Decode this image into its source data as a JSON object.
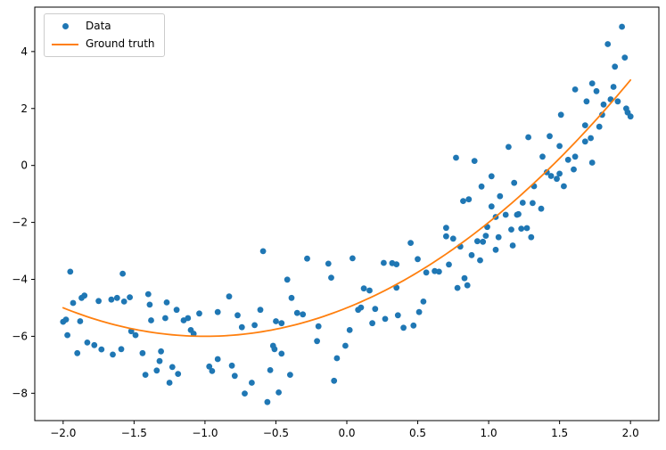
{
  "figure": {
    "background": "#ffffff",
    "frame_color": "#000000"
  },
  "legend": {
    "position": "upper left",
    "items": [
      {
        "label": "Data",
        "marker": "dot",
        "color": "#1f77b4"
      },
      {
        "label": "Ground truth",
        "marker": "line",
        "color": "#ff7f0e"
      }
    ]
  },
  "chart_data": {
    "type": "scatter",
    "title": "",
    "xlabel": "",
    "ylabel": "",
    "grid": false,
    "legend_position": "upper left",
    "xlim": [
      -2.2,
      2.2
    ],
    "ylim": [
      -8.96,
      5.56
    ],
    "x_ticks": [
      -2.0,
      -1.5,
      -1.0,
      -0.5,
      0.0,
      0.5,
      1.0,
      1.5,
      2.0
    ],
    "x_tick_labels": [
      "−2.0",
      "−1.5",
      "−1.0",
      "−0.5",
      "0.0",
      "0.5",
      "1.0",
      "1.5",
      "2.0"
    ],
    "y_ticks": [
      4,
      2,
      0,
      -2,
      -4,
      -6,
      -8
    ],
    "y_tick_labels": [
      "4",
      "2",
      "0",
      "−2",
      "−4",
      "−6",
      "−8"
    ],
    "series": [
      {
        "name": "Data",
        "type": "scatter",
        "color": "#1f77b4",
        "marker_radius": 3.4,
        "points": [
          [
            -2.0,
            -5.49
          ],
          [
            -1.98,
            -5.41
          ],
          [
            -1.97,
            -5.96
          ],
          [
            -1.95,
            -3.73
          ],
          [
            -1.93,
            -4.83
          ],
          [
            -1.9,
            -6.59
          ],
          [
            -1.88,
            -5.47
          ],
          [
            -1.87,
            -4.65
          ],
          [
            -1.85,
            -4.57
          ],
          [
            -1.83,
            -6.22
          ],
          [
            -1.78,
            -6.31
          ],
          [
            -1.75,
            -4.76
          ],
          [
            -1.73,
            -6.46
          ],
          [
            -1.66,
            -4.71
          ],
          [
            -1.65,
            -6.64
          ],
          [
            -1.62,
            -4.65
          ],
          [
            -1.59,
            -6.45
          ],
          [
            -1.58,
            -3.8
          ],
          [
            -1.57,
            -4.78
          ],
          [
            -1.53,
            -4.63
          ],
          [
            -1.52,
            -5.82
          ],
          [
            -1.49,
            -5.96
          ],
          [
            -1.44,
            -6.59
          ],
          [
            -1.42,
            -7.35
          ],
          [
            -1.4,
            -4.52
          ],
          [
            -1.39,
            -4.89
          ],
          [
            -1.38,
            -5.44
          ],
          [
            -1.34,
            -7.2
          ],
          [
            -1.32,
            -6.87
          ],
          [
            -1.31,
            -6.53
          ],
          [
            -1.28,
            -5.36
          ],
          [
            -1.27,
            -4.81
          ],
          [
            -1.25,
            -7.63
          ],
          [
            -1.23,
            -7.08
          ],
          [
            -1.2,
            -5.07
          ],
          [
            -1.19,
            -7.32
          ],
          [
            -1.15,
            -5.44
          ],
          [
            -1.12,
            -5.36
          ],
          [
            -1.1,
            -5.78
          ],
          [
            -1.08,
            -5.91
          ],
          [
            -1.04,
            -5.2
          ],
          [
            -0.97,
            -7.06
          ],
          [
            -0.95,
            -7.22
          ],
          [
            -0.91,
            -6.8
          ],
          [
            -0.91,
            -5.15
          ],
          [
            -0.83,
            -4.6
          ],
          [
            -0.81,
            -7.03
          ],
          [
            -0.79,
            -7.39
          ],
          [
            -0.77,
            -5.26
          ],
          [
            -0.74,
            -5.68
          ],
          [
            -0.72,
            -8.01
          ],
          [
            -0.67,
            -7.63
          ],
          [
            -0.65,
            -5.61
          ],
          [
            -0.61,
            -5.07
          ],
          [
            -0.59,
            -3.01
          ],
          [
            -0.56,
            -8.31
          ],
          [
            -0.54,
            -7.19
          ],
          [
            -0.52,
            -6.33
          ],
          [
            -0.51,
            -6.45
          ],
          [
            -0.5,
            -5.47
          ],
          [
            -0.48,
            -7.97
          ],
          [
            -0.46,
            -6.61
          ],
          [
            -0.46,
            -5.54
          ],
          [
            -0.42,
            -4.01
          ],
          [
            -0.4,
            -7.35
          ],
          [
            -0.39,
            -4.65
          ],
          [
            -0.35,
            -5.18
          ],
          [
            -0.31,
            -5.23
          ],
          [
            -0.28,
            -3.27
          ],
          [
            -0.21,
            -6.17
          ],
          [
            -0.2,
            -5.65
          ],
          [
            -0.13,
            -3.45
          ],
          [
            -0.11,
            -3.94
          ],
          [
            -0.09,
            -7.56
          ],
          [
            -0.07,
            -6.77
          ],
          [
            -0.01,
            -6.33
          ],
          [
            0.02,
            -5.78
          ],
          [
            0.04,
            -3.26
          ],
          [
            0.08,
            -5.07
          ],
          [
            0.1,
            -4.99
          ],
          [
            0.12,
            -4.32
          ],
          [
            0.16,
            -4.39
          ],
          [
            0.18,
            -5.54
          ],
          [
            0.2,
            -5.04
          ],
          [
            0.26,
            -3.42
          ],
          [
            0.27,
            -5.39
          ],
          [
            0.32,
            -3.43
          ],
          [
            0.35,
            -3.47
          ],
          [
            0.35,
            -4.29
          ],
          [
            0.36,
            -5.26
          ],
          [
            0.4,
            -5.7
          ],
          [
            0.45,
            -2.72
          ],
          [
            0.47,
            -5.62
          ],
          [
            0.5,
            -3.29
          ],
          [
            0.51,
            -5.15
          ],
          [
            0.54,
            -4.78
          ],
          [
            0.56,
            -3.76
          ],
          [
            0.62,
            -3.71
          ],
          [
            0.65,
            -3.73
          ],
          [
            0.7,
            -2.19
          ],
          [
            0.7,
            -2.49
          ],
          [
            0.72,
            -3.48
          ],
          [
            0.75,
            -2.57
          ],
          [
            0.77,
            0.27
          ],
          [
            0.78,
            -4.3
          ],
          [
            0.8,
            -2.85
          ],
          [
            0.82,
            -1.25
          ],
          [
            0.83,
            -3.96
          ],
          [
            0.85,
            -4.21
          ],
          [
            0.86,
            -1.19
          ],
          [
            0.88,
            -3.15
          ],
          [
            0.9,
            0.16
          ],
          [
            0.92,
            -2.66
          ],
          [
            0.94,
            -3.33
          ],
          [
            0.95,
            -0.74
          ],
          [
            0.96,
            -2.68
          ],
          [
            0.98,
            -2.47
          ],
          [
            0.99,
            -2.16
          ],
          [
            1.02,
            -1.44
          ],
          [
            1.02,
            -0.38
          ],
          [
            1.05,
            -2.96
          ],
          [
            1.05,
            -1.81
          ],
          [
            1.07,
            -2.52
          ],
          [
            1.08,
            -1.08
          ],
          [
            1.12,
            -1.73
          ],
          [
            1.14,
            0.65
          ],
          [
            1.16,
            -2.25
          ],
          [
            1.17,
            -2.81
          ],
          [
            1.18,
            -0.61
          ],
          [
            1.2,
            -1.73
          ],
          [
            1.21,
            -1.71
          ],
          [
            1.23,
            -2.22
          ],
          [
            1.24,
            -1.31
          ],
          [
            1.27,
            -2.2
          ],
          [
            1.28,
            0.99
          ],
          [
            1.3,
            -2.52
          ],
          [
            1.31,
            -1.32
          ],
          [
            1.32,
            -0.73
          ],
          [
            1.37,
            -1.52
          ],
          [
            1.38,
            0.31
          ],
          [
            1.41,
            -0.24
          ],
          [
            1.43,
            1.03
          ],
          [
            1.44,
            -0.37
          ],
          [
            1.48,
            -0.47
          ],
          [
            1.5,
            0.68
          ],
          [
            1.5,
            -0.29
          ],
          [
            1.51,
            1.78
          ],
          [
            1.53,
            -0.73
          ],
          [
            1.56,
            0.2
          ],
          [
            1.6,
            -0.14
          ],
          [
            1.61,
            0.31
          ],
          [
            1.61,
            2.67
          ],
          [
            1.68,
            1.41
          ],
          [
            1.68,
            0.84
          ],
          [
            1.69,
            2.25
          ],
          [
            1.72,
            0.96
          ],
          [
            1.73,
            2.88
          ],
          [
            1.73,
            0.1
          ],
          [
            1.76,
            2.61
          ],
          [
            1.78,
            1.36
          ],
          [
            1.8,
            1.78
          ],
          [
            1.81,
            2.14
          ],
          [
            1.84,
            4.26
          ],
          [
            1.86,
            2.32
          ],
          [
            1.88,
            2.76
          ],
          [
            1.89,
            3.47
          ],
          [
            1.91,
            2.25
          ],
          [
            1.94,
            4.87
          ],
          [
            1.96,
            3.79
          ],
          [
            1.97,
            2.0
          ],
          [
            1.98,
            1.86
          ],
          [
            2.0,
            1.72
          ]
        ]
      },
      {
        "name": "Ground truth",
        "type": "line",
        "color": "#ff7f0e",
        "line_width": 1.8,
        "curve": "y = x^2 + 2x - 5",
        "coefficients": [
          1,
          2,
          -5
        ],
        "x_range": [
          -2,
          2
        ]
      }
    ]
  }
}
